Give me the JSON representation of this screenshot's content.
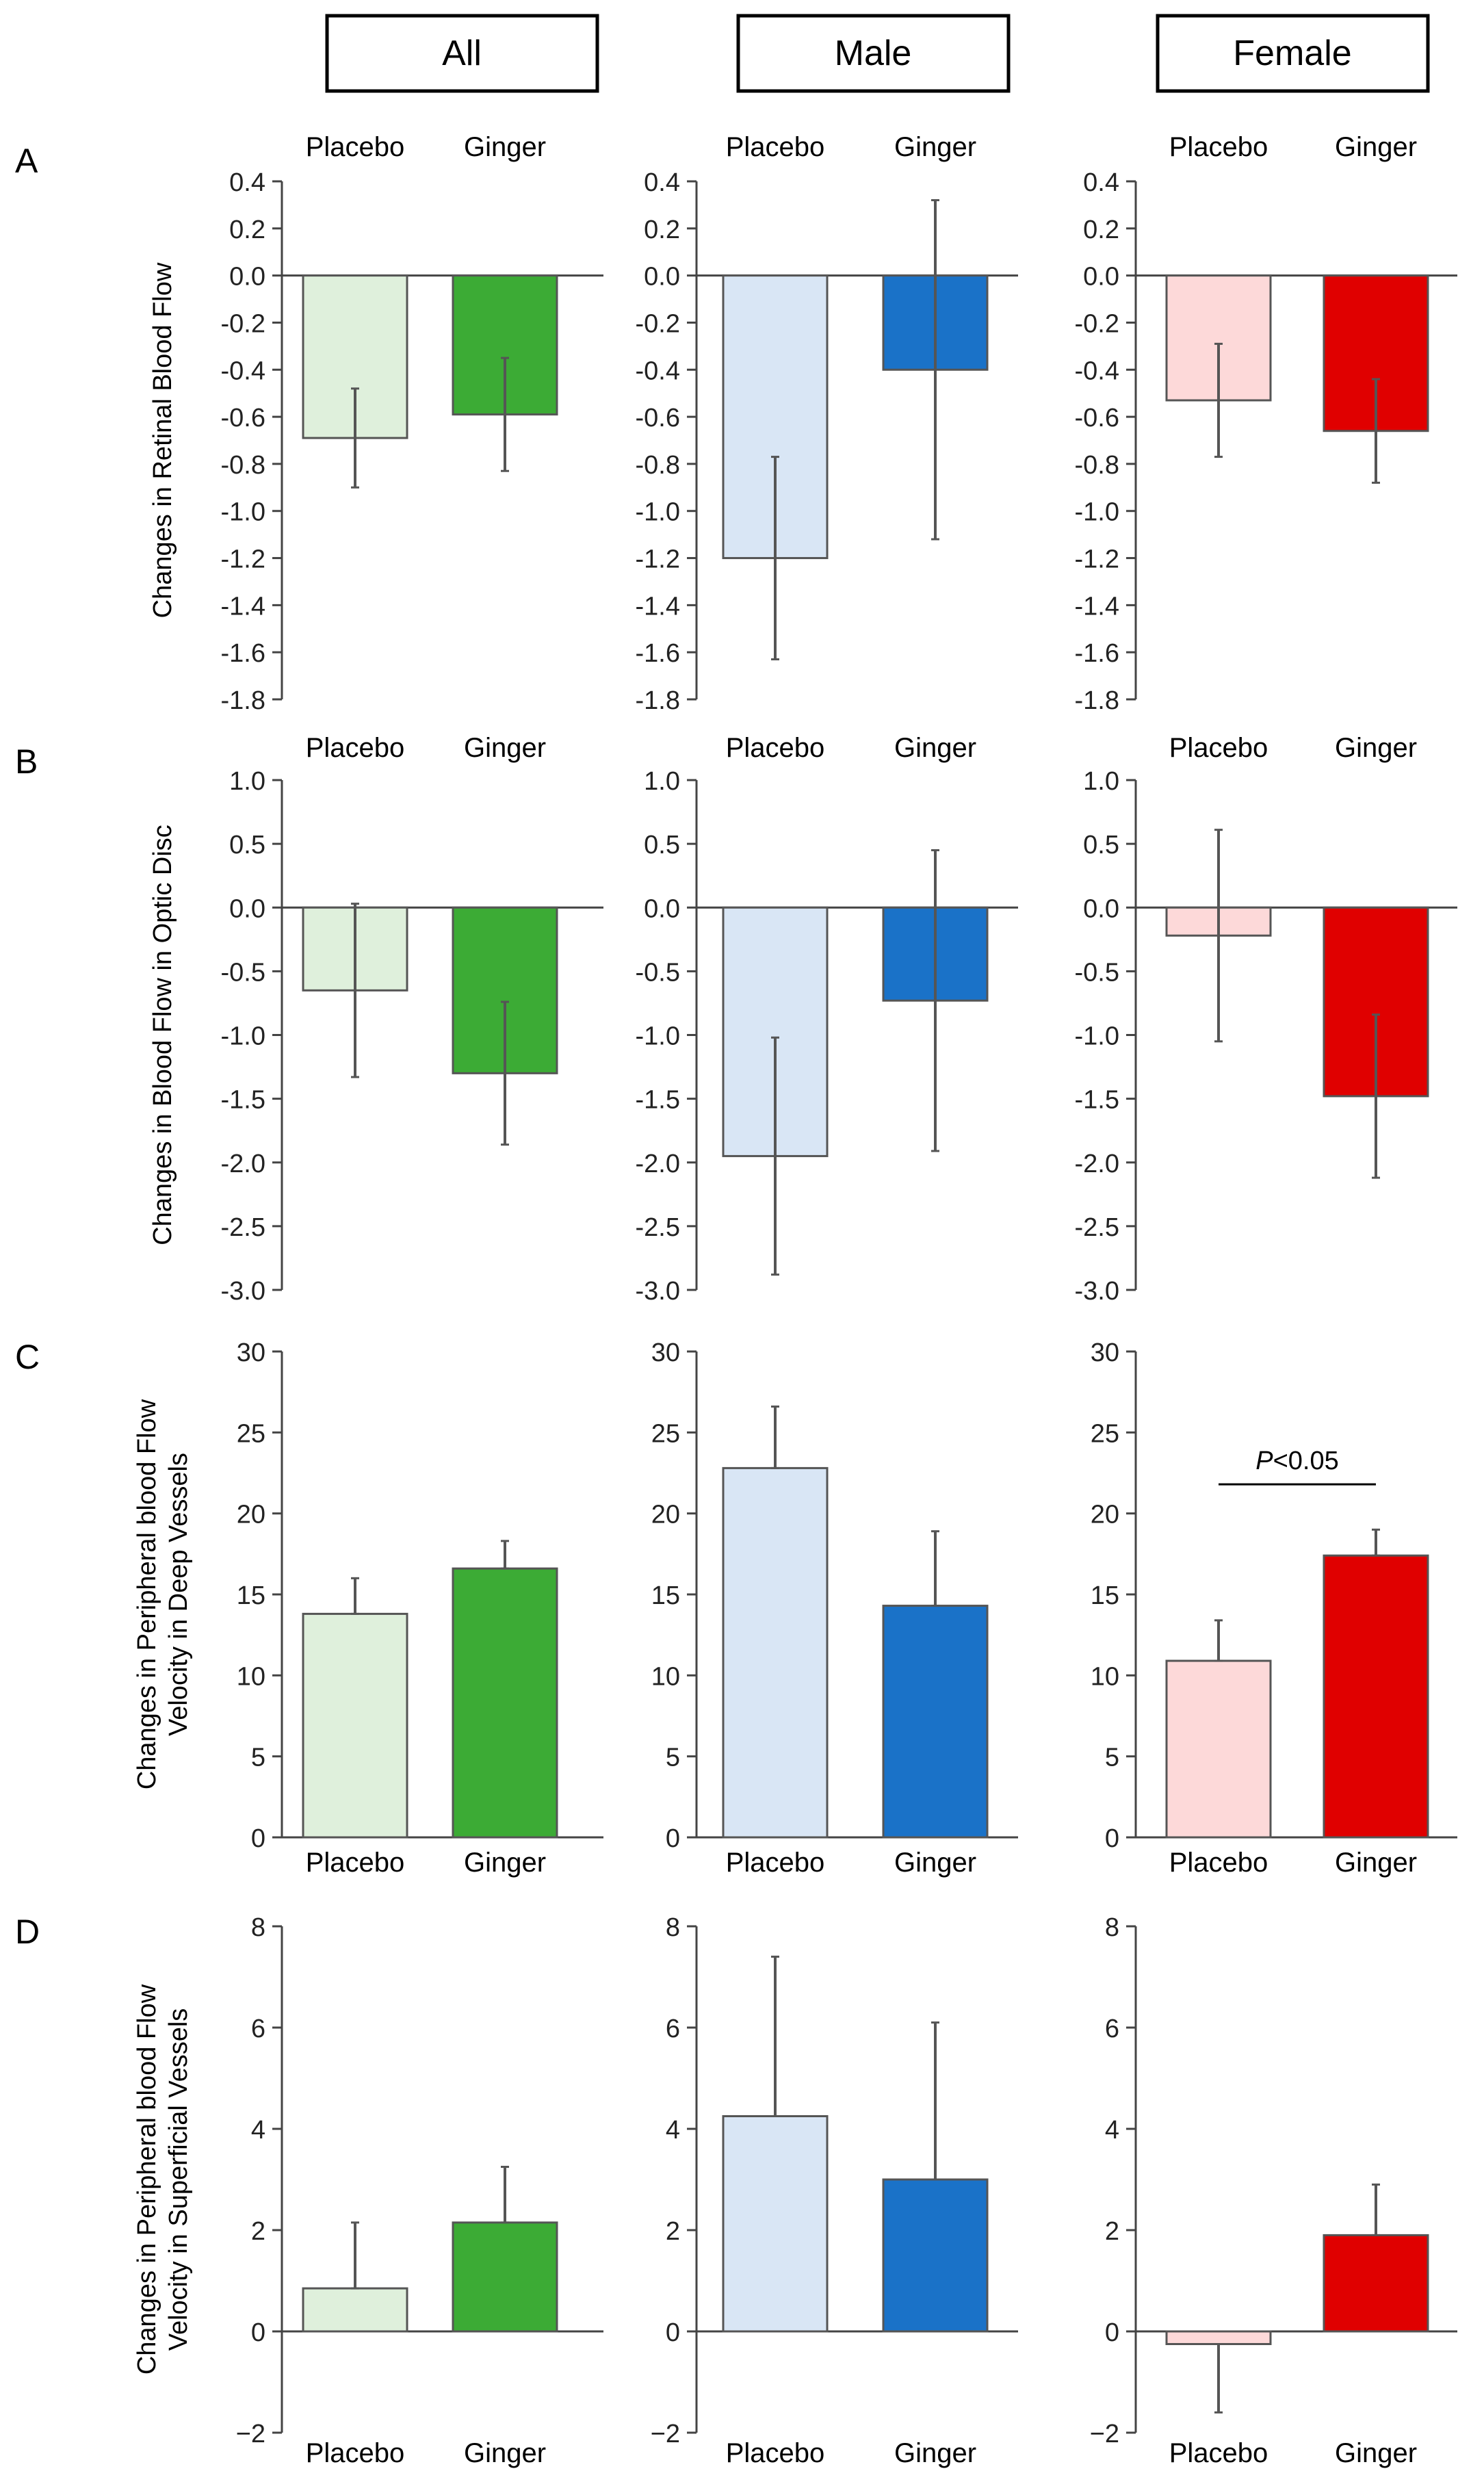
{
  "column_headers": [
    "All",
    "Male",
    "Female"
  ],
  "row_labels": [
    "A",
    "B",
    "C",
    "D"
  ],
  "group_labels": [
    "Placebo",
    "Ginger"
  ],
  "colors": {
    "all": [
      "#dff0dc",
      "#3cab35"
    ],
    "male": [
      "#d9e6f5",
      "#1a72c8"
    ],
    "female": [
      "#fdd9d9",
      "#e00000"
    ],
    "axis": "#444444",
    "bar_border": "#555555"
  },
  "significance_label": "P<0.05",
  "chart_data": [
    {
      "type": "bar",
      "panel": "A",
      "group": "All",
      "categories": [
        "Placebo",
        "Ginger"
      ],
      "values": [
        -0.69,
        -0.59
      ],
      "errors": [
        0.21,
        0.24
      ],
      "ylabel": "Changes in Retinal Blood Flow",
      "ylim": [
        -1.8,
        0.4
      ],
      "yticks": [
        "0.4",
        "0.2",
        "0.0",
        "-0.2",
        "-0.4",
        "-0.6",
        "-0.8",
        "-1.0",
        "-1.2",
        "-1.4",
        "-1.6",
        "-1.8"
      ]
    },
    {
      "type": "bar",
      "panel": "A",
      "group": "Male",
      "categories": [
        "Placebo",
        "Ginger"
      ],
      "values": [
        -1.2,
        -0.4
      ],
      "errors": [
        0.43,
        0.72
      ],
      "ylabel": "",
      "ylim": [
        -1.8,
        0.4
      ],
      "yticks": [
        "0.4",
        "0.2",
        "0.0",
        "-0.2",
        "-0.4",
        "-0.6",
        "-0.8",
        "-1.0",
        "-1.2",
        "-1.4",
        "-1.6",
        "-1.8"
      ]
    },
    {
      "type": "bar",
      "panel": "A",
      "group": "Female",
      "categories": [
        "Placebo",
        "Ginger"
      ],
      "values": [
        -0.53,
        -0.66
      ],
      "errors": [
        0.24,
        0.22
      ],
      "ylabel": "",
      "ylim": [
        -1.8,
        0.4
      ],
      "yticks": [
        "0.4",
        "0.2",
        "0.0",
        "-0.2",
        "-0.4",
        "-0.6",
        "-0.8",
        "-1.0",
        "-1.2",
        "-1.4",
        "-1.6",
        "-1.8"
      ]
    },
    {
      "type": "bar",
      "panel": "B",
      "group": "All",
      "categories": [
        "Placebo",
        "Ginger"
      ],
      "values": [
        -0.65,
        -1.3
      ],
      "errors": [
        0.68,
        0.56
      ],
      "ylabel": "Changes in Blood Flow in Optic Disc",
      "ylim": [
        -3.0,
        1.0
      ],
      "yticks": [
        "1.0",
        "0.5",
        "0.0",
        "-0.5",
        "-1.0",
        "-1.5",
        "-2.0",
        "-2.5",
        "-3.0"
      ]
    },
    {
      "type": "bar",
      "panel": "B",
      "group": "Male",
      "categories": [
        "Placebo",
        "Ginger"
      ],
      "values": [
        -1.95,
        -0.73
      ],
      "errors": [
        0.93,
        1.18
      ],
      "ylabel": "",
      "ylim": [
        -3.0,
        1.0
      ],
      "yticks": [
        "1.0",
        "0.5",
        "0.0",
        "-0.5",
        "-1.0",
        "-1.5",
        "-2.0",
        "-2.5",
        "-3.0"
      ]
    },
    {
      "type": "bar",
      "panel": "B",
      "group": "Female",
      "categories": [
        "Placebo",
        "Ginger"
      ],
      "values": [
        -0.22,
        -1.48
      ],
      "errors": [
        0.83,
        0.64
      ],
      "ylabel": "",
      "ylim": [
        -3.0,
        1.0
      ],
      "yticks": [
        "1.0",
        "0.5",
        "0.0",
        "-0.5",
        "-1.0",
        "-1.5",
        "-2.0",
        "-2.5",
        "-3.0"
      ]
    },
    {
      "type": "bar",
      "panel": "C",
      "group": "All",
      "categories": [
        "Placebo",
        "Ginger"
      ],
      "values": [
        13.8,
        16.6
      ],
      "errors": [
        2.2,
        1.7
      ],
      "ylabel": [
        "Changes in Peripheral blood Flow",
        "Velocity in Deep Vessels"
      ],
      "ylim": [
        0,
        30
      ],
      "yticks": [
        "30",
        "25",
        "20",
        "15",
        "10",
        "5",
        "0"
      ]
    },
    {
      "type": "bar",
      "panel": "C",
      "group": "Male",
      "categories": [
        "Placebo",
        "Ginger"
      ],
      "values": [
        22.8,
        14.3
      ],
      "errors": [
        3.8,
        4.6
      ],
      "ylabel": "",
      "ylim": [
        0,
        30
      ],
      "yticks": [
        "30",
        "25",
        "20",
        "15",
        "10",
        "5",
        "0"
      ]
    },
    {
      "type": "bar",
      "panel": "C",
      "group": "Female",
      "categories": [
        "Placebo",
        "Ginger"
      ],
      "values": [
        10.9,
        17.4
      ],
      "errors": [
        2.5,
        1.6
      ],
      "ylabel": "",
      "ylim": [
        0,
        30
      ],
      "yticks": [
        "30",
        "25",
        "20",
        "15",
        "10",
        "5",
        "0"
      ],
      "significance": "P<0.05"
    },
    {
      "type": "bar",
      "panel": "D",
      "group": "All",
      "categories": [
        "Placebo",
        "Ginger"
      ],
      "values": [
        0.85,
        2.15
      ],
      "errors": [
        1.3,
        1.1
      ],
      "ylabel": [
        "Changes in Peripheral blood Flow",
        "Velocity in Superficial Vessels"
      ],
      "ylim": [
        -2,
        8
      ],
      "yticks": [
        "8",
        "6",
        "4",
        "2",
        "0",
        "−2"
      ]
    },
    {
      "type": "bar",
      "panel": "D",
      "group": "Male",
      "categories": [
        "Placebo",
        "Ginger"
      ],
      "values": [
        4.25,
        3.0
      ],
      "errors": [
        3.15,
        3.1
      ],
      "ylabel": "",
      "ylim": [
        -2,
        8
      ],
      "yticks": [
        "8",
        "6",
        "4",
        "2",
        "0",
        "−2"
      ]
    },
    {
      "type": "bar",
      "panel": "D",
      "group": "Female",
      "categories": [
        "Placebo",
        "Ginger"
      ],
      "values": [
        -0.25,
        1.9
      ],
      "errors": [
        1.35,
        1.0
      ],
      "ylabel": "",
      "ylim": [
        -2,
        8
      ],
      "yticks": [
        "8",
        "6",
        "4",
        "2",
        "0",
        "−2"
      ]
    }
  ]
}
